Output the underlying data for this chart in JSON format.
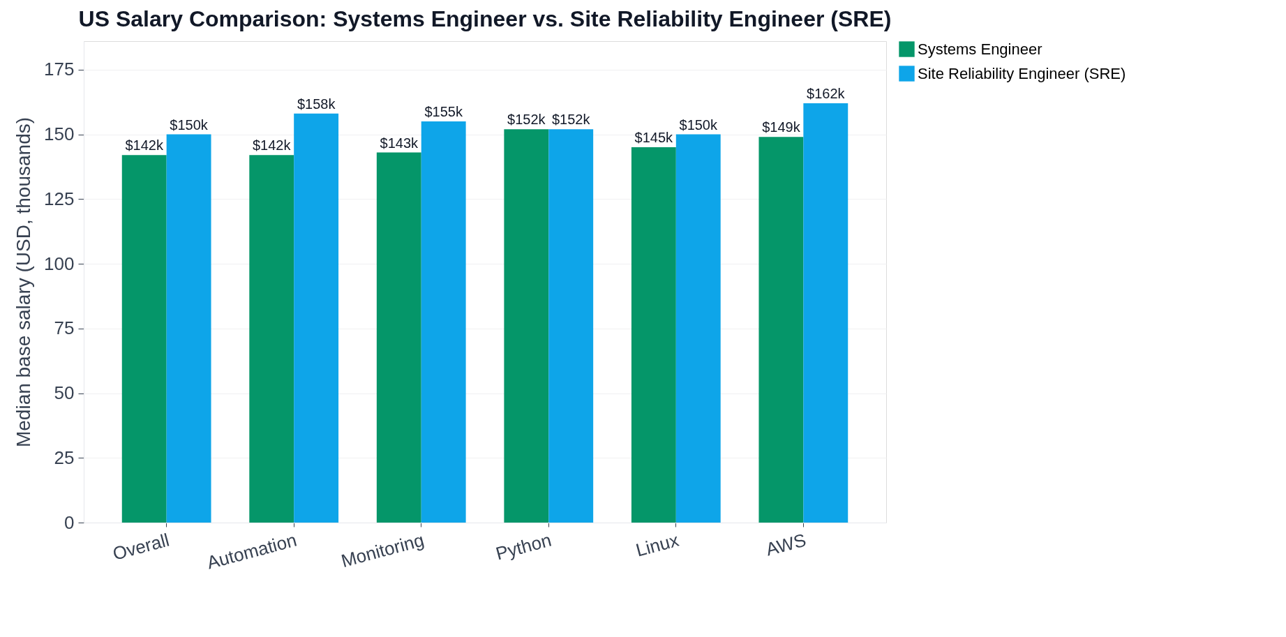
{
  "chart_data": {
    "type": "bar",
    "title": "US Salary Comparison: Systems Engineer vs. Site Reliability Engineer (SRE)",
    "ylabel": "Median base salary (USD, thousands)",
    "categories": [
      "Overall",
      "Automation",
      "Monitoring",
      "Python",
      "Linux",
      "AWS"
    ],
    "series": [
      {
        "name": "Systems Engineer",
        "color": "#059669",
        "values": [
          142,
          142,
          143,
          152,
          145,
          149
        ],
        "value_labels": [
          "$142k",
          "$142k",
          "$143k",
          "$152k",
          "$145k",
          "$149k"
        ]
      },
      {
        "name": "Site Reliability Engineer (SRE)",
        "color": "#0ea5e9",
        "values": [
          150,
          158,
          155,
          152,
          150,
          162
        ],
        "value_labels": [
          "$150k",
          "$158k",
          "$155k",
          "$152k",
          "$150k",
          "$162k"
        ]
      }
    ],
    "ylim": [
      0,
      186
    ],
    "yticks": [
      0,
      25,
      50,
      75,
      100,
      125,
      150,
      175
    ],
    "grid": "y",
    "legend": "right"
  }
}
